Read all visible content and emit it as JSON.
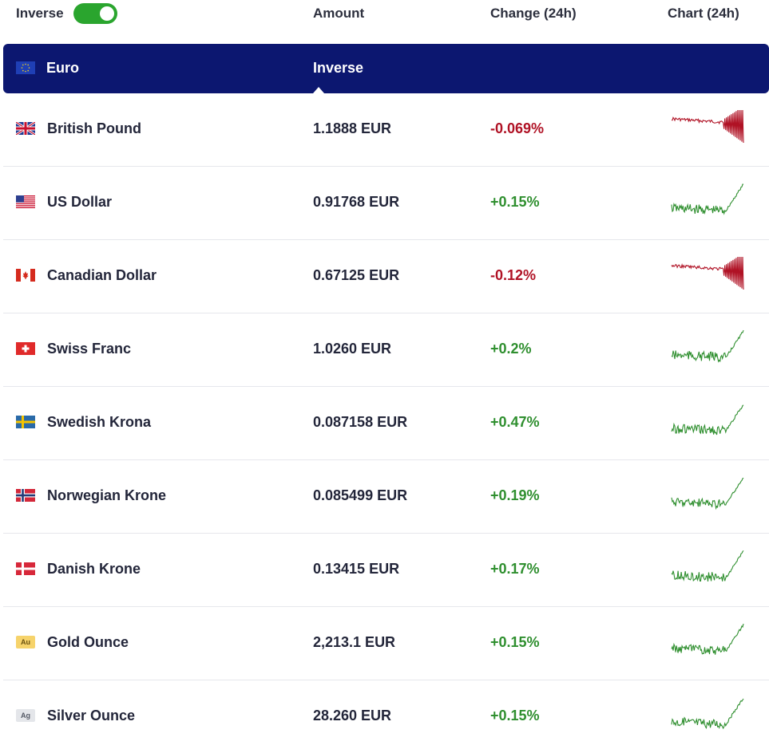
{
  "header": {
    "inverse_label": "Inverse",
    "inverse_on": true,
    "col_amount": "Amount",
    "col_change": "Change (24h)",
    "col_chart": "Chart (24h)"
  },
  "base": {
    "name": "Euro",
    "flag": "eu-flag-icon",
    "inverse_label": "Inverse"
  },
  "colors": {
    "band": "#0c1770",
    "toggle": "#2aa52e",
    "positive": "#2f8f2f",
    "negative": "#b01225"
  },
  "rows": [
    {
      "name": "British Pound",
      "flag": "gb-flag-icon",
      "amount": "1.1888 EUR",
      "change": "-0.069%",
      "trend": "down"
    },
    {
      "name": "US Dollar",
      "flag": "us-flag-icon",
      "amount": "0.91768 EUR",
      "change": "+0.15%",
      "trend": "up"
    },
    {
      "name": "Canadian Dollar",
      "flag": "ca-flag-icon",
      "amount": "0.67125 EUR",
      "change": "-0.12%",
      "trend": "down"
    },
    {
      "name": "Swiss Franc",
      "flag": "ch-flag-icon",
      "amount": "1.0260 EUR",
      "change": "+0.2%",
      "trend": "up"
    },
    {
      "name": "Swedish Krona",
      "flag": "se-flag-icon",
      "amount": "0.087158 EUR",
      "change": "+0.47%",
      "trend": "up"
    },
    {
      "name": "Norwegian Krone",
      "flag": "no-flag-icon",
      "amount": "0.085499 EUR",
      "change": "+0.19%",
      "trend": "up"
    },
    {
      "name": "Danish Krone",
      "flag": "dk-flag-icon",
      "amount": "0.13415 EUR",
      "change": "+0.17%",
      "trend": "up"
    },
    {
      "name": "Gold Ounce",
      "flag": "gold-icon",
      "metal_label": "Au",
      "amount": "2,213.1 EUR",
      "change": "+0.15%",
      "trend": "up"
    },
    {
      "name": "Silver Ounce",
      "flag": "silver-icon",
      "metal_label": "Ag",
      "amount": "28.260 EUR",
      "change": "+0.15%",
      "trend": "up"
    }
  ]
}
